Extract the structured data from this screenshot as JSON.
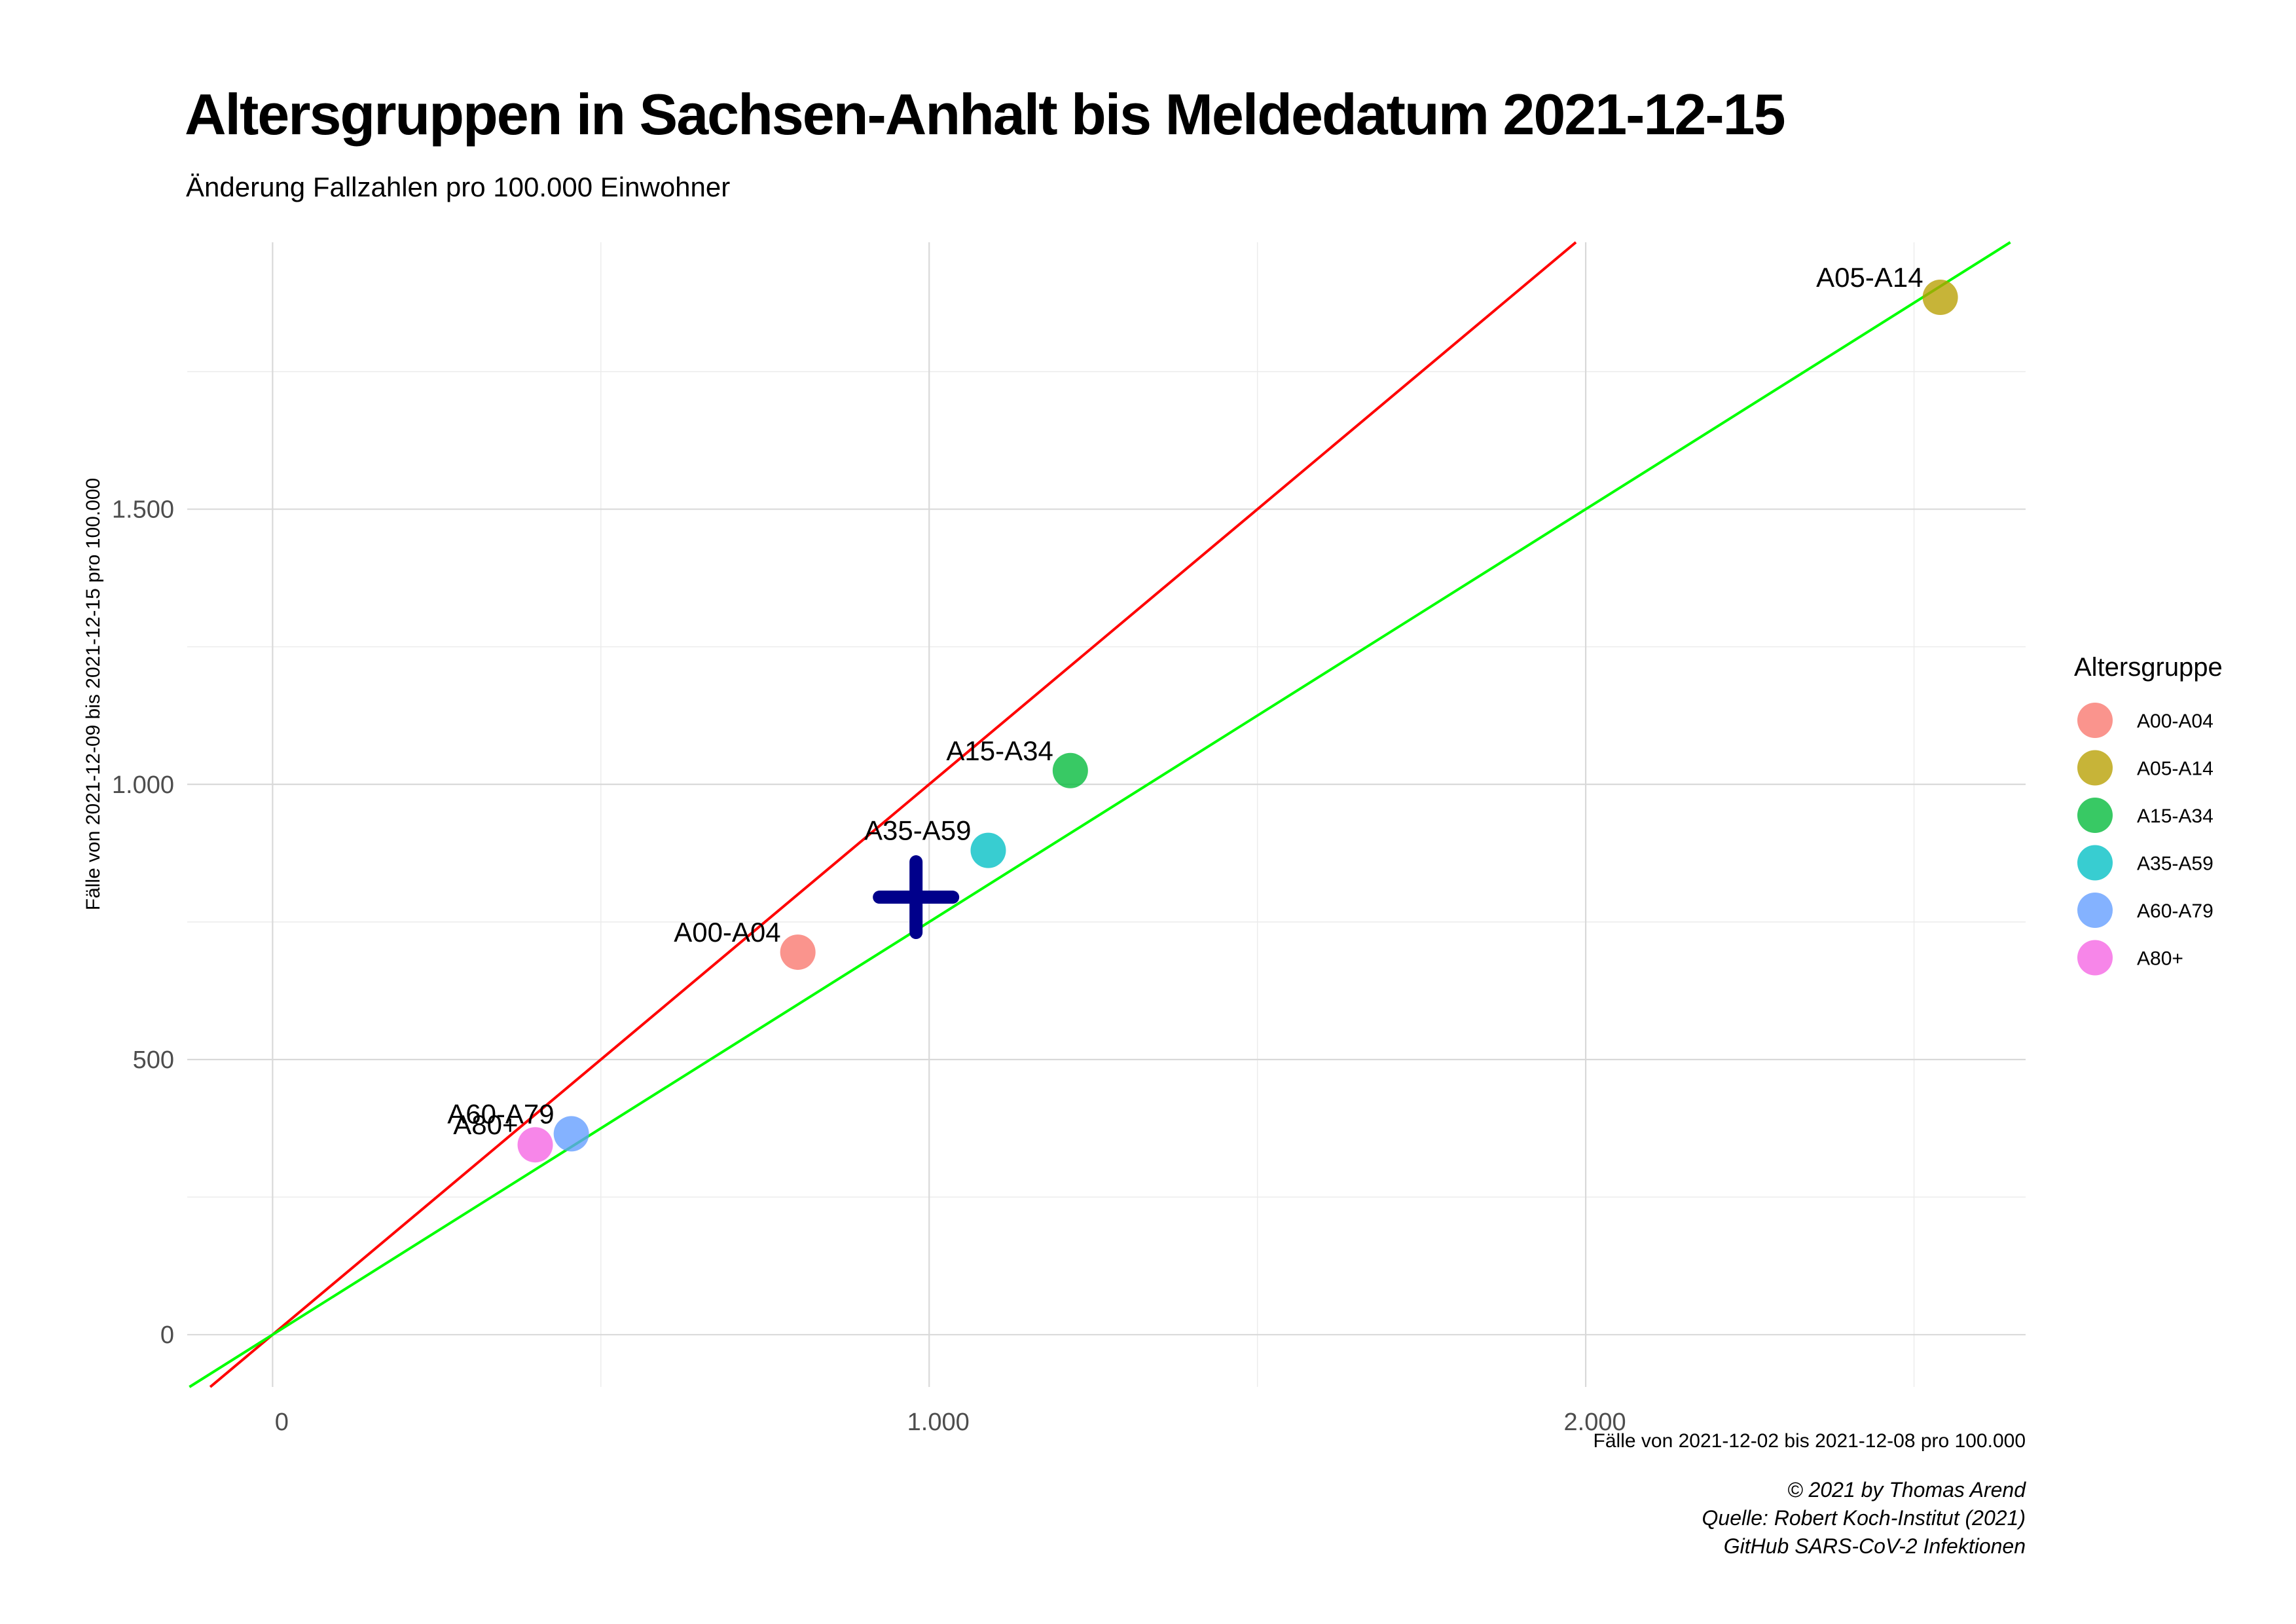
{
  "chart_data": {
    "type": "scatter",
    "title": "Altersgruppen in Sachsen-Anhalt bis Meldedatum 2021-12-15",
    "subtitle": "Änderung Fallzahlen pro 100.000 Einwohner",
    "xlabel": "Fälle von 2021-12-02 bis 2021-12-08 pro 100.000",
    "ylabel": "Fälle von 2021-12-09 bis 2021-12-15 pro 100.000",
    "xlim": [
      -130,
      2670
    ],
    "ylim": [
      -95,
      1985
    ],
    "x_ticks": [
      {
        "value": 0,
        "label": "0"
      },
      {
        "value": 1000,
        "label": "1.000"
      },
      {
        "value": 2000,
        "label": "2.000"
      }
    ],
    "y_ticks": [
      {
        "value": 0,
        "label": "0"
      },
      {
        "value": 500,
        "label": "500"
      },
      {
        "value": 1000,
        "label": "1.000"
      },
      {
        "value": 1500,
        "label": "1.500"
      }
    ],
    "grid": true,
    "legend_title": "Altersgruppe",
    "legend_position": "right",
    "points": [
      {
        "label": "A00-A04",
        "x": 800,
        "y": 695,
        "color": "#F8766D"
      },
      {
        "label": "A05-A14",
        "x": 2540,
        "y": 1885,
        "color": "#B79F00"
      },
      {
        "label": "A15-A34",
        "x": 1215,
        "y": 1025,
        "color": "#00BA38"
      },
      {
        "label": "A35-A59",
        "x": 1090,
        "y": 880,
        "color": "#00BFC4"
      },
      {
        "label": "A60-A79",
        "x": 455,
        "y": 365,
        "color": "#619CFF"
      },
      {
        "label": "A80+",
        "x": 400,
        "y": 345,
        "color": "#F564E3"
      }
    ],
    "mean_marker": {
      "x": 980,
      "y": 795,
      "color": "#00008B",
      "symbol": "plus"
    },
    "reference_lines": [
      {
        "slope": 1.0,
        "intercept": 0,
        "color": "#FF0000"
      },
      {
        "slope": 0.75,
        "intercept": 0,
        "color": "#00FF00"
      }
    ]
  },
  "caption": [
    "© 2021 by Thomas Arend",
    "Quelle: Robert Koch-Institut (2021)",
    "GitHub SARS-CoV-2 Infektionen"
  ]
}
